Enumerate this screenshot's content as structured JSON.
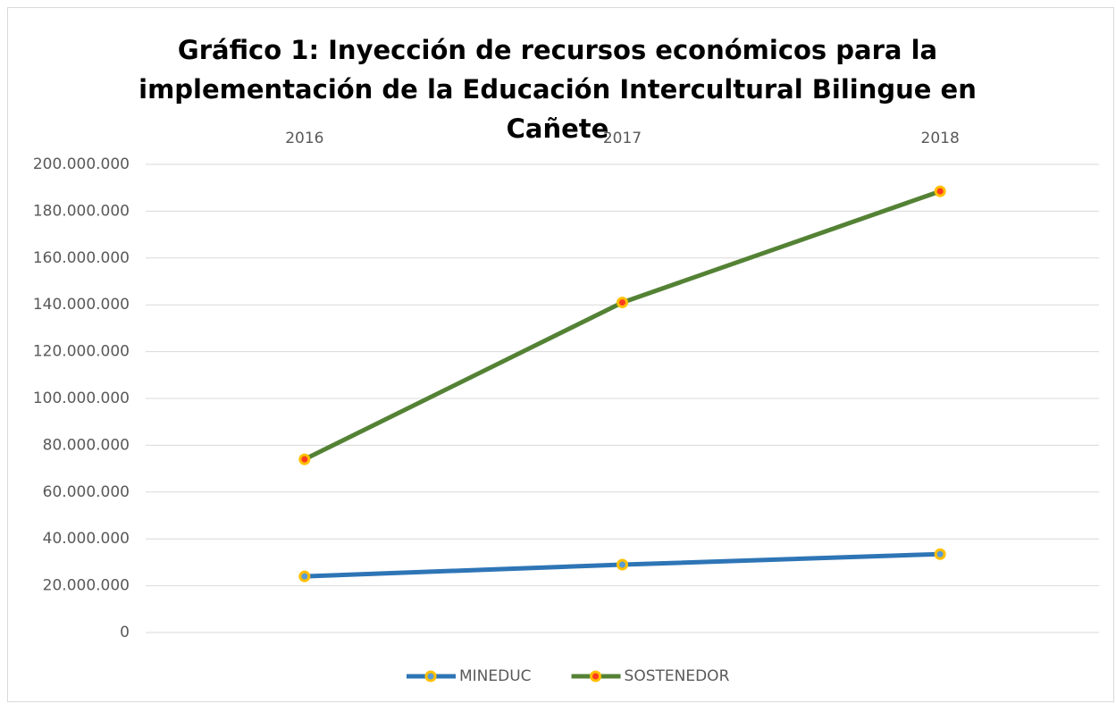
{
  "chart_data": {
    "type": "line",
    "title": "Gráfico 1: Inyección de recursos económicos para la implementación de la Educación Intercultural Bilingue en Cañete",
    "categories": [
      "2016",
      "2017",
      "2018"
    ],
    "series": [
      {
        "name": "MINEDUC",
        "color": "#2e75b6",
        "marker_edge": "#ffc000",
        "marker_fill": "#5b9bd5",
        "values": [
          24000000,
          29000000,
          33500000
        ]
      },
      {
        "name": "SOSTENEDOR",
        "color": "#548235",
        "marker_edge": "#ffc000",
        "marker_fill": "#ff3b1f",
        "values": [
          74000000,
          141000000,
          188500000
        ]
      }
    ],
    "ylim": [
      0,
      200000000
    ],
    "yticks": [
      0,
      {
        "value": 20000000,
        "label": "20.000.000"
      },
      {
        "value": 40000000,
        "label": "40.000.000"
      },
      {
        "value": 60000000,
        "label": "60.000.000"
      },
      {
        "value": 80000000,
        "label": "80.000.000"
      },
      {
        "value": 100000000,
        "label": "100.000.000"
      },
      {
        "value": 120000000,
        "label": "120.000.000"
      },
      {
        "value": 140000000,
        "label": "140.000.000"
      },
      {
        "value": 160000000,
        "label": "160.000.000"
      },
      {
        "value": 180000000,
        "label": "180.000.000"
      },
      {
        "value": 200000000,
        "label": "200.000.000"
      }
    ],
    "grid": true,
    "legend": "bottom"
  }
}
